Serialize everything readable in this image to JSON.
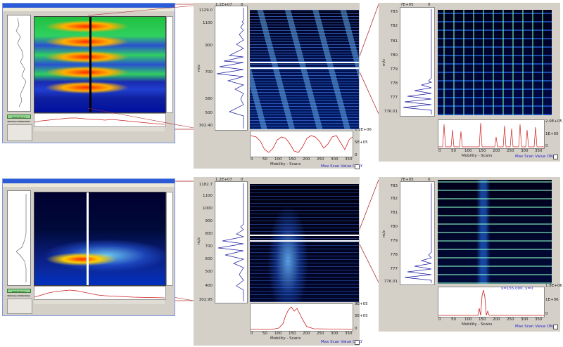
{
  "top": {
    "zoom1": {
      "scale_label": "1.1E+07",
      "zero_label": "0",
      "y_axis_label": "m/z",
      "y_ticks": [
        "1129.0",
        "1100",
        "900",
        "700",
        "580",
        "500",
        "302.40"
      ],
      "intensity_label": "1.2E+06",
      "intensity_mid": "5E+05",
      "intensity_zero": "0",
      "x_ticks": [
        "0",
        "50",
        "100",
        "150",
        "200",
        "250",
        "300",
        "350"
      ],
      "x_label": "Mobility - Scans",
      "max_scan": "Max Scan Value ONLY"
    },
    "zoom2": {
      "scale_label": "7E+05",
      "zero_label": "0",
      "y_axis_label": "m/z",
      "y_ticks": [
        "783",
        "782",
        "781",
        "780",
        "779",
        "778",
        "777",
        "776.01"
      ],
      "intensity_label": "2.0E+05",
      "intensity_mid": "1E+05",
      "intensity_zero": "0",
      "x_ticks": [
        "0",
        "50",
        "100",
        "150",
        "200",
        "250",
        "300",
        "350"
      ],
      "x_label": "Mobility - Scans",
      "max_scan": "Max Scan Value ONLY"
    }
  },
  "bottom": {
    "zoom1": {
      "scale_label": "1.2E+07",
      "zero_label": "0",
      "y_axis_label": "m/z",
      "y_ticks": [
        "1182.7",
        "1100",
        "1000",
        "900",
        "800",
        "700",
        "600",
        "500",
        "400",
        "302.95"
      ],
      "intensity_label": "9E+05",
      "intensity_mid": "5E+05",
      "intensity_zero": "0",
      "x_ticks": [
        "0",
        "50",
        "100",
        "150",
        "200",
        "250",
        "300",
        "350"
      ],
      "x_label": "Mobility - Scans",
      "max_scan": "Max Scan Value ONLY"
    },
    "zoom2": {
      "scale_label": "7E+05",
      "zero_label": "0",
      "y_axis_label": "m/z",
      "y_ticks": [
        "783",
        "782",
        "781",
        "780",
        "779",
        "778",
        "777",
        "776.01"
      ],
      "intensity_label": "1.8E+06",
      "intensity_mid": "1E+06",
      "intensity_zero": "0",
      "annotation": "x=155.000, y=0",
      "x_ticks": [
        "0",
        "50",
        "100",
        "150",
        "200",
        "250",
        "300",
        "350"
      ],
      "x_label": "Mobility - Scans",
      "max_scan": "Max Scan Value ONLY"
    }
  },
  "window": {
    "green_button_label": "Reset Zoom / Recompute Summed",
    "tab1": "Options",
    "tab2": "Calibration"
  },
  "colors": {
    "connector": "#b03030",
    "profile_blue": "#1a1aa0",
    "trace_red": "#cc2020",
    "window_blue": "#2b5bd6"
  }
}
